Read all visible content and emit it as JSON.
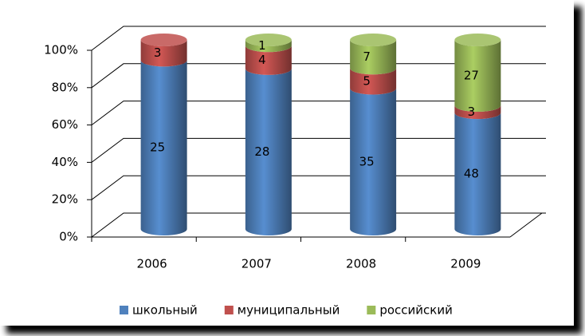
{
  "chart_data": {
    "type": "bar",
    "stacked_percent": true,
    "categories": [
      "2006",
      "2007",
      "2008",
      "2009"
    ],
    "series": [
      {
        "name": "школьный",
        "color": "#4f81bd",
        "values": [
          25,
          28,
          35,
          48
        ]
      },
      {
        "name": "муниципальный",
        "color": "#c0504d",
        "values": [
          3,
          4,
          5,
          3
        ]
      },
      {
        "name": "российский",
        "color": "#9bbb59",
        "values": [
          null,
          1,
          7,
          27
        ]
      }
    ],
    "ylim": [
      0,
      100
    ],
    "yticks": [
      {
        "value": 0,
        "label": "0%"
      },
      {
        "value": 20,
        "label": "20%"
      },
      {
        "value": 40,
        "label": "40%"
      },
      {
        "value": 60,
        "label": "60%"
      },
      {
        "value": 80,
        "label": "80%"
      },
      {
        "value": 100,
        "label": "100%"
      }
    ],
    "grid": true,
    "legend": "bottom"
  }
}
